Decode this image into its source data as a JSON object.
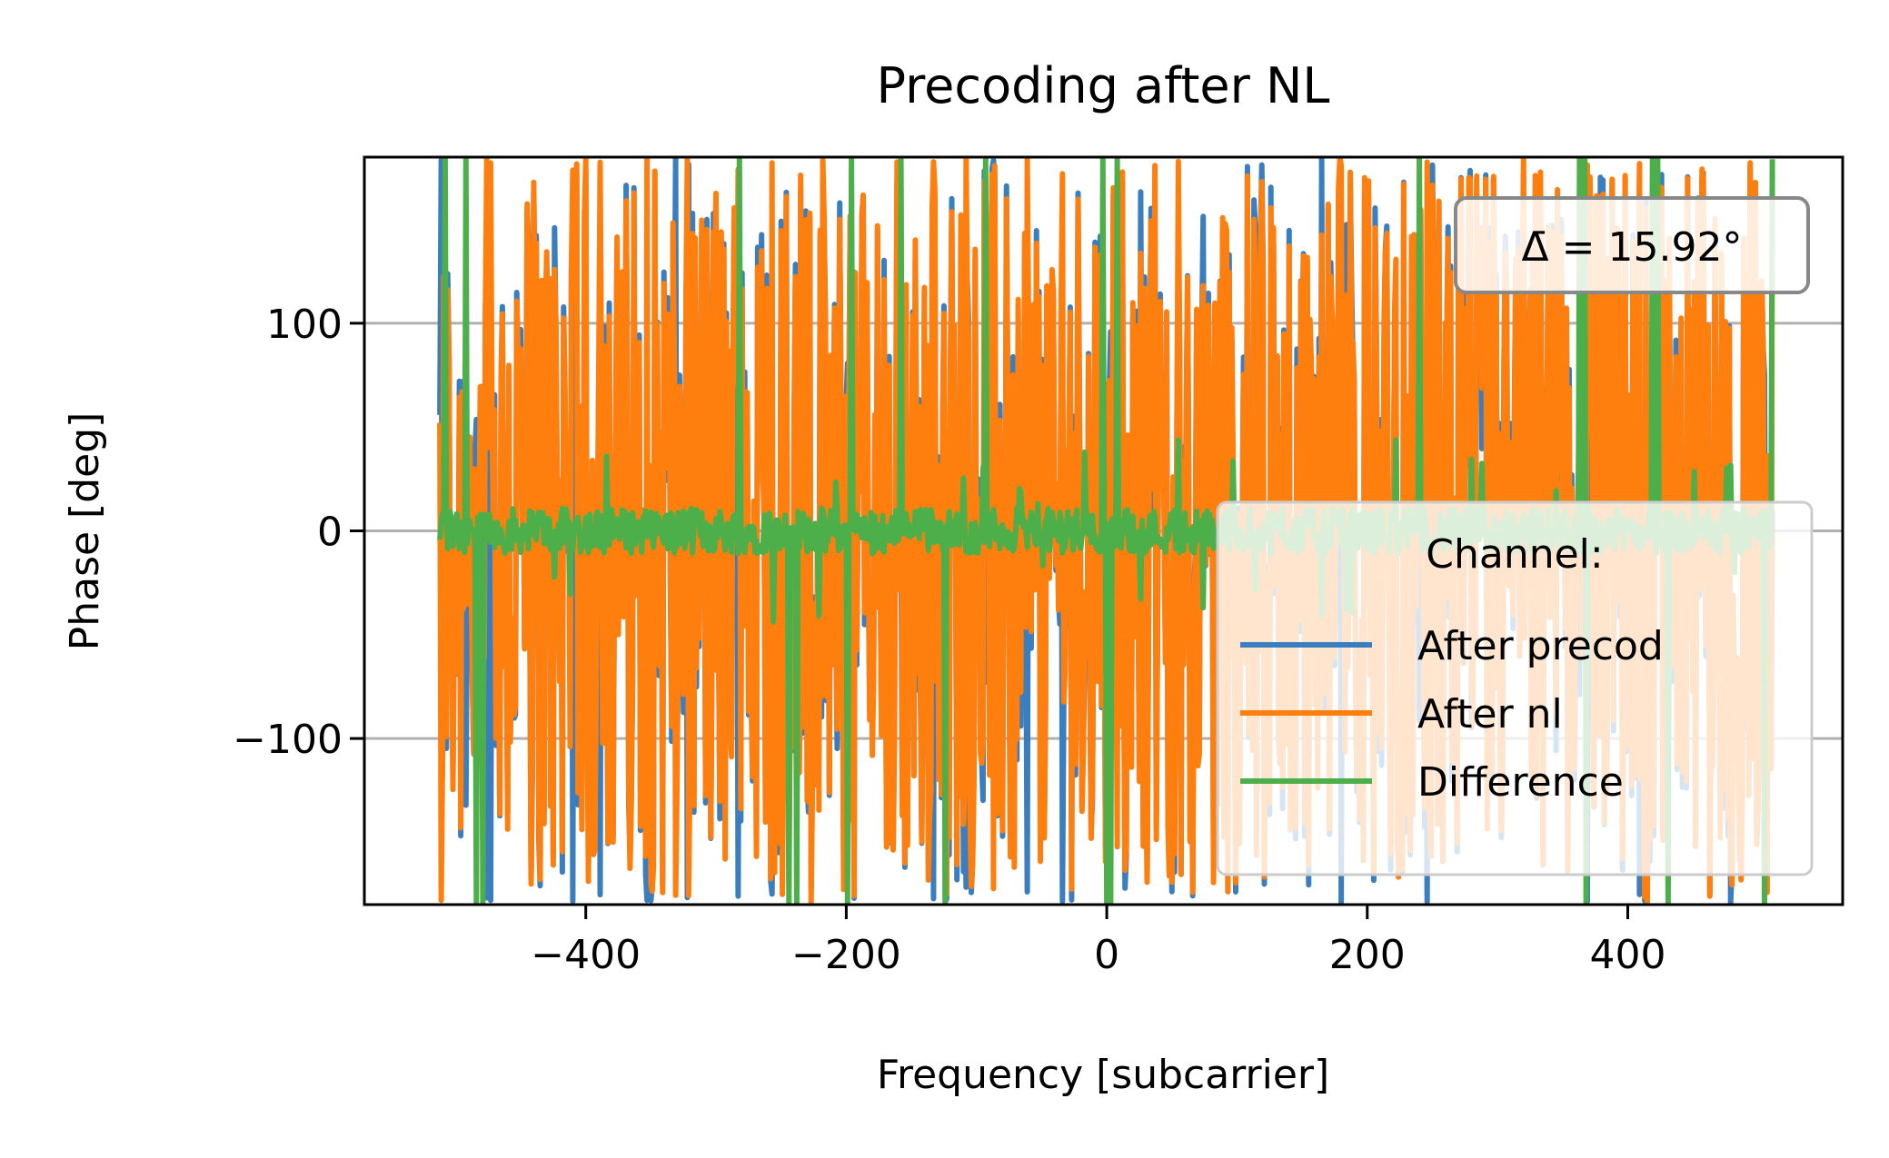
{
  "chart_data": {
    "type": "line",
    "title": "Precoding after NL",
    "xlabel": "Frequency [subcarrier]",
    "ylabel": "Phase [deg]",
    "xlim": [
      -570,
      565
    ],
    "ylim": [
      -180,
      180
    ],
    "x_range": [
      -512,
      511
    ],
    "xticks": [
      -400,
      -200,
      0,
      200,
      400
    ],
    "xtick_labels": [
      "−400",
      "−200",
      "0",
      "200",
      "400"
    ],
    "yticks": [
      -100,
      0,
      100
    ],
    "ytick_labels": [
      "−100",
      "0",
      "100"
    ],
    "grid": "y",
    "annotation": "Δ̄ = 15.92°",
    "legend": {
      "title": "Channel:",
      "placement": "lower right",
      "entries": [
        "After precod",
        "After nl",
        "Difference"
      ]
    },
    "series": [
      {
        "name": "After precod",
        "color": "#3a7ebf",
        "pattern": "uniform phase in [-180, 180] per subcarrier"
      },
      {
        "name": "After nl",
        "color": "#ff7f0e",
        "pattern": "uniform phase in [-180, 180], close to After precod"
      },
      {
        "name": "Difference",
        "color": "#4daf4a",
        "pattern": "mostly within ±15, occasional ±180 wraps"
      }
    ],
    "difference_spikes": [
      -508,
      -492,
      -484,
      -479,
      -282,
      -244,
      -238,
      -199,
      -196,
      -158,
      -124,
      -93,
      -3,
      0,
      3,
      8,
      240,
      363,
      368,
      367,
      419,
      423,
      431,
      505,
      511
    ],
    "mean_abs_difference_deg": 15.92
  }
}
